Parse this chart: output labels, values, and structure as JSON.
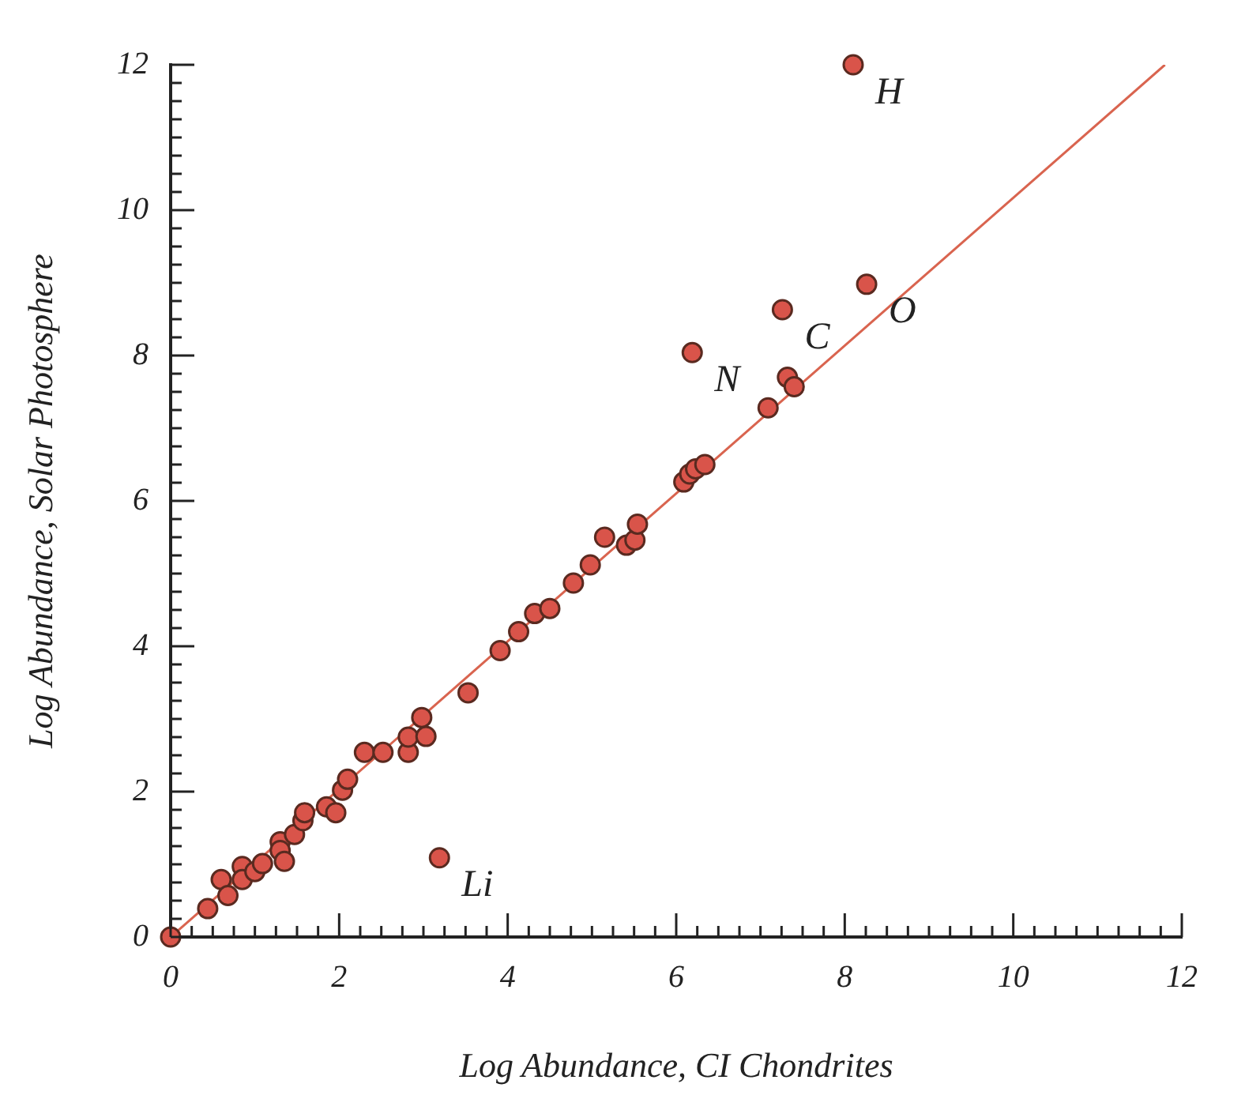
{
  "chart_data": {
    "type": "scatter",
    "xlabel": "Log Abundance, CI Chondrites",
    "ylabel": "Log Abundance, Solar Photosphere",
    "xlim": [
      0,
      12
    ],
    "ylim": [
      0,
      12
    ],
    "xticks": [
      0,
      {
        "value": 0.25,
        "label": null
      },
      {
        "value": 0.5,
        "label": null
      },
      {
        "value": 0.75,
        "label": null
      },
      {
        "value": 1,
        "label": null
      },
      {
        "value": 1.25,
        "label": null
      },
      {
        "value": 1.5,
        "label": null
      },
      {
        "value": 1.75,
        "label": null
      },
      2,
      {
        "value": 2.25,
        "label": null
      },
      {
        "value": 2.5,
        "label": null
      },
      {
        "value": 2.75,
        "label": null
      },
      {
        "value": 3,
        "label": null
      },
      {
        "value": 3.25,
        "label": null
      },
      {
        "value": 3.5,
        "label": null
      },
      {
        "value": 3.75,
        "label": null
      },
      4,
      {
        "value": 4.25,
        "label": null
      },
      {
        "value": 4.5,
        "label": null
      },
      {
        "value": 4.75,
        "label": null
      },
      {
        "value": 5,
        "label": null
      },
      {
        "value": 5.25,
        "label": null
      },
      {
        "value": 5.5,
        "label": null
      },
      {
        "value": 5.75,
        "label": null
      },
      6,
      {
        "value": 6.25,
        "label": null
      },
      {
        "value": 6.5,
        "label": null
      },
      {
        "value": 6.75,
        "label": null
      },
      {
        "value": 7,
        "label": null
      },
      {
        "value": 7.25,
        "label": null
      },
      {
        "value": 7.5,
        "label": null
      },
      {
        "value": 7.75,
        "label": null
      },
      8,
      {
        "value": 8.25,
        "label": null
      },
      {
        "value": 8.5,
        "label": null
      },
      {
        "value": 8.75,
        "label": null
      },
      {
        "value": 9,
        "label": null
      },
      {
        "value": 9.25,
        "label": null
      },
      {
        "value": 9.5,
        "label": null
      },
      {
        "value": 9.75,
        "label": null
      },
      10,
      {
        "value": 10.25,
        "label": null
      },
      {
        "value": 10.5,
        "label": null
      },
      {
        "value": 10.75,
        "label": null
      },
      {
        "value": 11,
        "label": null
      },
      {
        "value": 11.25,
        "label": null
      },
      {
        "value": 11.5,
        "label": null
      },
      {
        "value": 11.75,
        "label": null
      },
      12
    ],
    "yticks": [
      0,
      {
        "value": 0.25,
        "label": null
      },
      {
        "value": 0.5,
        "label": null
      },
      {
        "value": 0.75,
        "label": null
      },
      {
        "value": 1,
        "label": null
      },
      {
        "value": 1.25,
        "label": null
      },
      {
        "value": 1.5,
        "label": null
      },
      {
        "value": 1.75,
        "label": null
      },
      2,
      {
        "value": 2.25,
        "label": null
      },
      {
        "value": 2.5,
        "label": null
      },
      {
        "value": 2.75,
        "label": null
      },
      {
        "value": 3,
        "label": null
      },
      {
        "value": 3.25,
        "label": null
      },
      {
        "value": 3.5,
        "label": null
      },
      {
        "value": 3.75,
        "label": null
      },
      4,
      {
        "value": 4.25,
        "label": null
      },
      {
        "value": 4.5,
        "label": null
      },
      {
        "value": 4.75,
        "label": null
      },
      {
        "value": 5,
        "label": null
      },
      {
        "value": 5.25,
        "label": null
      },
      {
        "value": 5.5,
        "label": null
      },
      {
        "value": 5.75,
        "label": null
      },
      6,
      {
        "value": 6.25,
        "label": null
      },
      {
        "value": 6.5,
        "label": null
      },
      {
        "value": 6.75,
        "label": null
      },
      {
        "value": 7,
        "label": null
      },
      {
        "value": 7.25,
        "label": null
      },
      {
        "value": 7.5,
        "label": null
      },
      {
        "value": 7.75,
        "label": null
      },
      8,
      {
        "value": 8.25,
        "label": null
      },
      {
        "value": 8.5,
        "label": null
      },
      {
        "value": 8.75,
        "label": null
      },
      {
        "value": 9,
        "label": null
      },
      {
        "value": 9.25,
        "label": null
      },
      {
        "value": 9.5,
        "label": null
      },
      {
        "value": 9.75,
        "label": null
      },
      10,
      {
        "value": 10.25,
        "label": null
      },
      {
        "value": 10.5,
        "label": null
      },
      {
        "value": 10.75,
        "label": null
      },
      {
        "value": 11,
        "label": null
      },
      {
        "value": 11.25,
        "label": null
      },
      {
        "value": 11.5,
        "label": null
      },
      {
        "value": 11.75,
        "label": null
      },
      12
    ],
    "grid": false,
    "legend": false,
    "marker": "circle",
    "series": [
      {
        "type": "line",
        "color": "#d9644f",
        "x": [
          0,
          11.8
        ],
        "values": [
          0,
          12.0
        ],
        "marker": "none",
        "line_style": "solid"
      },
      {
        "color": "#d9544a",
        "x": [
          0.0,
          0.44,
          0.6,
          0.68,
          0.85,
          0.85,
          1.0,
          1.09,
          1.3,
          1.3,
          1.35,
          1.47,
          1.57,
          1.59,
          1.85,
          1.96,
          2.04,
          2.1,
          2.3,
          2.52,
          2.82,
          2.82,
          2.98,
          3.03,
          3.53,
          3.91,
          4.13,
          4.32,
          4.5,
          4.78,
          4.98,
          5.15,
          5.41,
          5.51,
          5.54,
          6.09,
          6.16,
          6.23,
          6.34,
          7.09,
          7.32,
          7.4,
          3.19,
          6.19,
          7.26,
          8.26,
          8.1
        ],
        "values": [
          0.0,
          0.39,
          0.79,
          0.57,
          0.97,
          0.79,
          0.9,
          1.01,
          1.31,
          1.19,
          1.04,
          1.41,
          1.6,
          1.71,
          1.79,
          1.71,
          2.02,
          2.17,
          2.54,
          2.54,
          2.54,
          2.75,
          3.02,
          2.76,
          3.36,
          3.94,
          4.2,
          4.45,
          4.52,
          4.87,
          5.12,
          5.5,
          5.39,
          5.46,
          5.68,
          6.26,
          6.37,
          6.44,
          6.5,
          7.28,
          7.7,
          7.57,
          1.09,
          8.04,
          8.63,
          8.98,
          12.0
        ]
      }
    ],
    "annotations": [
      {
        "text": "H",
        "x": 8.1,
        "y": 12.0
      },
      {
        "text": "O",
        "x": 8.26,
        "y": 8.98
      },
      {
        "text": "C",
        "x": 7.26,
        "y": 8.63
      },
      {
        "text": "N",
        "x": 6.19,
        "y": 8.04
      },
      {
        "text": "Li",
        "x": 3.19,
        "y": 1.09
      }
    ]
  }
}
